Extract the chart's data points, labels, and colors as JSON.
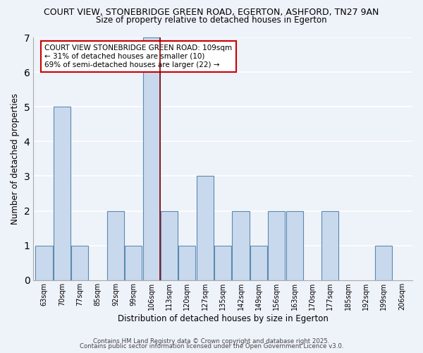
{
  "title_line1": "COURT VIEW, STONEBRIDGE GREEN ROAD, EGERTON, ASHFORD, TN27 9AN",
  "title_line2": "Size of property relative to detached houses in Egerton",
  "xlabel": "Distribution of detached houses by size in Egerton",
  "ylabel": "Number of detached properties",
  "bins": [
    "63sqm",
    "70sqm",
    "77sqm",
    "85sqm",
    "92sqm",
    "99sqm",
    "106sqm",
    "113sqm",
    "120sqm",
    "127sqm",
    "135sqm",
    "142sqm",
    "149sqm",
    "156sqm",
    "163sqm",
    "170sqm",
    "177sqm",
    "185sqm",
    "192sqm",
    "199sqm",
    "206sqm"
  ],
  "counts": [
    1,
    5,
    1,
    0,
    2,
    1,
    7,
    2,
    1,
    3,
    1,
    2,
    1,
    2,
    2,
    0,
    2,
    0,
    0,
    1,
    0
  ],
  "bar_color": "#c9d9ed",
  "bar_edge_color": "#5a8ab0",
  "highlight_bin_index": 6,
  "highlight_line_color": "#8b0000",
  "annotation_text": "COURT VIEW STONEBRIDGE GREEN ROAD: 109sqm\n← 31% of detached houses are smaller (10)\n69% of semi-detached houses are larger (22) →",
  "annotation_box_color": "white",
  "annotation_box_edge": "#cc0000",
  "ylim": [
    0,
    7
  ],
  "yticks": [
    0,
    1,
    2,
    3,
    4,
    5,
    6,
    7
  ],
  "footer_line1": "Contains HM Land Registry data © Crown copyright and database right 2025.",
  "footer_line2": "Contains public sector information licensed under the Open Government Licence v3.0.",
  "background_color": "#eef2f9",
  "grid_color": "white"
}
